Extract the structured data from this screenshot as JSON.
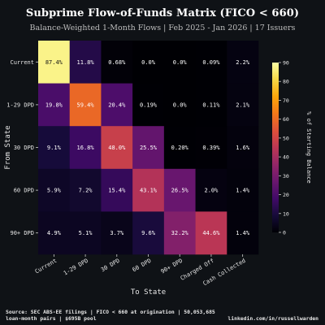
{
  "title": "Subprime Flow-of-Funds Matrix (FICO < 660)",
  "subtitle": "Balance-Weighted 1-Month Flows | Feb 2025 - Jan 2026 | 17 Issuers",
  "footer": {
    "source_line1": "Source: SEC ABS-EE filings | FICO < 660 at origination | 50,053,685",
    "source_line2": "loan-month pairs | $695B pool",
    "credit": "linkedin.com/in/russellwarden"
  },
  "chart_data": {
    "type": "heatmap",
    "title": "Subprime Flow-of-Funds Matrix (FICO < 660)",
    "xlabel": "To State",
    "ylabel": "From State",
    "x_categories": [
      "Current",
      "1-29 DPD",
      "30 DPD",
      "60 DPD",
      "90+ DPD",
      "Charged Off",
      "Cash Collected"
    ],
    "y_categories": [
      "Current",
      "1-29 DPD",
      "30 DPD",
      "60 DPD",
      "90+ DPD"
    ],
    "values": [
      [
        87.4,
        11.8,
        0.68,
        0.0,
        0.0,
        0.09,
        2.2
      ],
      [
        19.8,
        59.4,
        20.4,
        0.19,
        0.0,
        0.11,
        2.1
      ],
      [
        9.1,
        16.8,
        48.0,
        25.5,
        0.2,
        0.39,
        1.6
      ],
      [
        5.9,
        7.2,
        15.4,
        43.1,
        26.5,
        2.0,
        1.4
      ],
      [
        4.9,
        5.1,
        3.7,
        9.6,
        32.2,
        44.6,
        1.4
      ]
    ],
    "cell_labels": [
      [
        "87.4%",
        "11.8%",
        "0.68%",
        "0.0%",
        "0.0%",
        "0.09%",
        "2.2%"
      ],
      [
        "19.8%",
        "59.4%",
        "20.4%",
        "0.19%",
        "0.0%",
        "0.11%",
        "2.1%"
      ],
      [
        "9.1%",
        "16.8%",
        "48.0%",
        "25.5%",
        "0.20%",
        "0.39%",
        "1.6%"
      ],
      [
        "5.9%",
        "7.2%",
        "15.4%",
        "43.1%",
        "26.5%",
        "2.0%",
        "1.4%"
      ],
      [
        "4.9%",
        "5.1%",
        "3.7%",
        "9.6%",
        "32.2%",
        "44.6%",
        "1.4%"
      ]
    ],
    "colorbar": {
      "label": "% of Starting Balance",
      "range": [
        0,
        90
      ],
      "ticks": [
        0,
        10,
        20,
        30,
        40,
        50,
        60,
        70,
        80,
        90
      ],
      "colormap": "inferno"
    },
    "colors": {
      "background": "#0f1216",
      "text_light": "#ffffff",
      "text_dark": "#111111"
    }
  }
}
